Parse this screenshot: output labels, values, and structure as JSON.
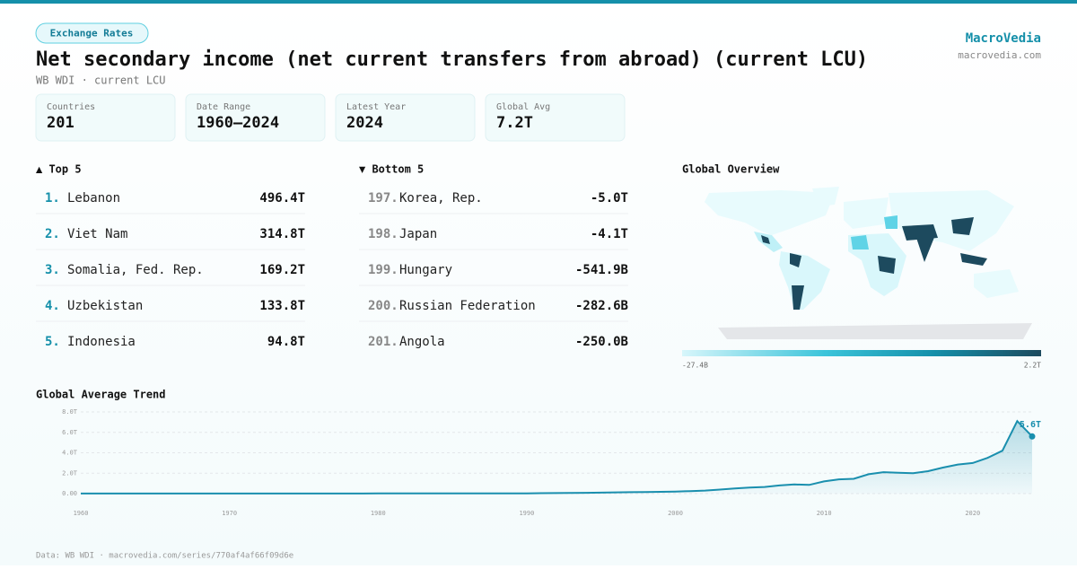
{
  "badge": "Exchange Rates",
  "header": {
    "title": "Net secondary income (net current transfers from abroad) (current LCU)",
    "subtitle": "WB WDI · current LCU",
    "brand": "MacroVedia",
    "site": "macrovedia.com"
  },
  "stats": [
    {
      "label": "Countries",
      "value": "201"
    },
    {
      "label": "Date Range",
      "value": "1960–2024"
    },
    {
      "label": "Latest Year",
      "value": "2024"
    },
    {
      "label": "Global Avg",
      "value": "7.2T"
    }
  ],
  "top": {
    "title": "▲ Top 5",
    "rows": [
      {
        "rank": "1.",
        "name": "Lebanon",
        "value": "496.4T"
      },
      {
        "rank": "2.",
        "name": "Viet Nam",
        "value": "314.8T"
      },
      {
        "rank": "3.",
        "name": "Somalia, Fed. Rep.",
        "value": "169.2T"
      },
      {
        "rank": "4.",
        "name": "Uzbekistan",
        "value": "133.8T"
      },
      {
        "rank": "5.",
        "name": "Indonesia",
        "value": "94.8T"
      }
    ]
  },
  "bottom": {
    "title": "▼ Bottom 5",
    "rows": [
      {
        "rank": "197.",
        "name": "Korea, Rep.",
        "value": "-5.0T"
      },
      {
        "rank": "198.",
        "name": "Japan",
        "value": "-4.1T"
      },
      {
        "rank": "199.",
        "name": "Hungary",
        "value": "-541.9B"
      },
      {
        "rank": "200.",
        "name": "Russian Federation",
        "value": "-282.6B"
      },
      {
        "rank": "201.",
        "name": "Angola",
        "value": "-250.0B"
      }
    ]
  },
  "map": {
    "title": "Global Overview",
    "legend_min": "-27.4B",
    "legend_max": "2.2T"
  },
  "chart_data": {
    "type": "line",
    "title": "Global Average Trend",
    "color": "#1a8fae",
    "x": [
      1960,
      1961,
      1962,
      1963,
      1964,
      1965,
      1966,
      1967,
      1968,
      1969,
      1970,
      1971,
      1972,
      1973,
      1974,
      1975,
      1976,
      1977,
      1978,
      1979,
      1980,
      1981,
      1982,
      1983,
      1984,
      1985,
      1986,
      1987,
      1988,
      1989,
      1990,
      1991,
      1992,
      1993,
      1994,
      1995,
      1996,
      1997,
      1998,
      1999,
      2000,
      2001,
      2002,
      2003,
      2004,
      2005,
      2006,
      2007,
      2008,
      2009,
      2010,
      2011,
      2012,
      2013,
      2014,
      2015,
      2016,
      2017,
      2018,
      2019,
      2020,
      2021,
      2022,
      2023,
      2024
    ],
    "values": [
      0.01,
      0.01,
      0.01,
      0.01,
      0.01,
      0.01,
      0.01,
      0.01,
      0.01,
      0.01,
      0.01,
      0.01,
      0.01,
      0.01,
      0.01,
      0.01,
      0.01,
      0.01,
      0.01,
      0.01,
      0.02,
      0.02,
      0.02,
      0.02,
      0.02,
      0.02,
      0.02,
      0.02,
      0.02,
      0.02,
      0.03,
      0.04,
      0.05,
      0.06,
      0.08,
      0.1,
      0.12,
      0.14,
      0.16,
      0.18,
      0.2,
      0.25,
      0.3,
      0.4,
      0.5,
      0.6,
      0.65,
      0.8,
      0.9,
      0.85,
      1.2,
      1.4,
      1.45,
      1.9,
      2.1,
      2.05,
      2.0,
      2.2,
      2.55,
      2.85,
      3.0,
      3.5,
      4.2,
      7.1,
      5.6
    ],
    "value_labels": [
      null,
      null,
      null,
      null,
      null,
      null,
      null,
      null,
      null,
      null,
      null,
      null,
      null,
      null,
      null,
      null,
      null,
      null,
      null,
      null,
      null,
      null,
      null,
      null,
      null,
      null,
      null,
      null,
      null,
      null,
      null,
      null,
      null,
      null,
      null,
      null,
      null,
      null,
      null,
      null,
      null,
      null,
      null,
      null,
      null,
      null,
      null,
      null,
      null,
      null,
      null,
      null,
      null,
      null,
      null,
      null,
      null,
      null,
      null,
      null,
      null,
      null,
      null,
      null,
      "5.6T"
    ],
    "xlim": [
      1960,
      2024
    ],
    "xticks": [
      1960,
      1970,
      1980,
      1990,
      2000,
      2010,
      2020
    ],
    "ylim": [
      0,
      8
    ],
    "yticks": [
      {
        "value": 0,
        "label": "0.00"
      },
      {
        "value": 2,
        "label": "2.0T"
      },
      {
        "value": 4,
        "label": "4.0T"
      },
      {
        "value": 6,
        "label": "6.0T"
      },
      {
        "value": 8,
        "label": "8.0T"
      }
    ],
    "grid": true
  },
  "footer": "Data: WB WDI · macrovedia.com/series/770af4af66f09d6e"
}
